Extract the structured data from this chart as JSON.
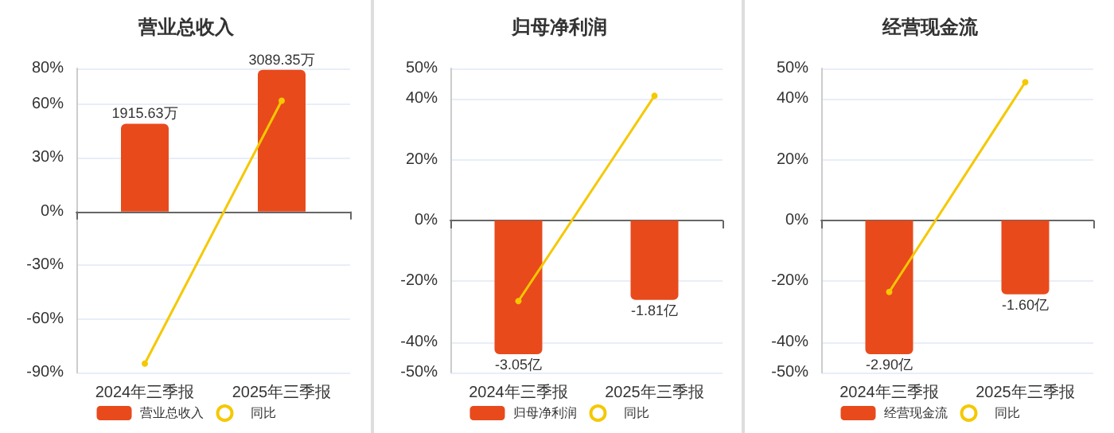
{
  "chart_data": [
    {
      "type": "bar",
      "title": "营业总收入",
      "categories": [
        "2024年三季报",
        "2025年三季报"
      ],
      "series": [
        {
          "name": "营业总收入",
          "axis": "y2",
          "color": "#e84a1c",
          "values": [
            1915.63,
            3089.35
          ],
          "value_labels": [
            "1915.63万",
            "3089.35万"
          ]
        },
        {
          "name": "同比",
          "type": "line",
          "color": "#f5c800",
          "values": [
            -85,
            62
          ]
        }
      ],
      "ylim": [
        -90,
        80
      ],
      "yticks": [
        {
          "value": -90,
          "label": "-90%"
        },
        {
          "value": -60,
          "label": "-60%"
        },
        {
          "value": -30,
          "label": "-30%"
        },
        {
          "value": 0,
          "label": "0%"
        },
        {
          "value": 30,
          "label": "30%"
        },
        {
          "value": 60,
          "label": "60%"
        },
        {
          "value": 80,
          "label": "80%"
        }
      ],
      "grid": "y",
      "legend": "bottom",
      "marker": "circle"
    },
    {
      "type": "bar",
      "title": "归母净利润",
      "categories": [
        "2024年三季报",
        "2025年三季报"
      ],
      "series": [
        {
          "name": "归母净利润",
          "axis": "y2",
          "color": "#e84a1c",
          "values": [
            -3.05,
            -1.81
          ],
          "value_labels": [
            "-3.05亿",
            "-1.81亿"
          ]
        },
        {
          "name": "同比",
          "type": "line",
          "color": "#f5c800",
          "values": [
            -26.5,
            41
          ]
        }
      ],
      "ylim": [
        -50,
        50
      ],
      "yticks": [
        {
          "value": -50,
          "label": "-50%"
        },
        {
          "value": -40,
          "label": "-40%"
        },
        {
          "value": -20,
          "label": "-20%"
        },
        {
          "value": 0,
          "label": "0%"
        },
        {
          "value": 20,
          "label": "20%"
        },
        {
          "value": 40,
          "label": "40%"
        },
        {
          "value": 50,
          "label": "50%"
        }
      ],
      "grid": "y",
      "legend": "bottom",
      "marker": "circle"
    },
    {
      "type": "bar",
      "title": "经营现金流",
      "categories": [
        "2024年三季报",
        "2025年三季报"
      ],
      "series": [
        {
          "name": "经营现金流",
          "axis": "y2",
          "color": "#e84a1c",
          "values": [
            -2.9,
            -1.6
          ],
          "value_labels": [
            "-2.90亿",
            "-1.60亿"
          ]
        },
        {
          "name": "同比",
          "type": "line",
          "color": "#f5c800",
          "values": [
            -23.5,
            45.5
          ]
        }
      ],
      "ylim": [
        -50,
        50
      ],
      "yticks": [
        {
          "value": -50,
          "label": "-50%"
        },
        {
          "value": -40,
          "label": "-40%"
        },
        {
          "value": -20,
          "label": "-20%"
        },
        {
          "value": 0,
          "label": "0%"
        },
        {
          "value": 20,
          "label": "20%"
        },
        {
          "value": 40,
          "label": "40%"
        },
        {
          "value": 50,
          "label": "50%"
        }
      ],
      "grid": "y",
      "legend": "bottom",
      "marker": "circle"
    }
  ]
}
